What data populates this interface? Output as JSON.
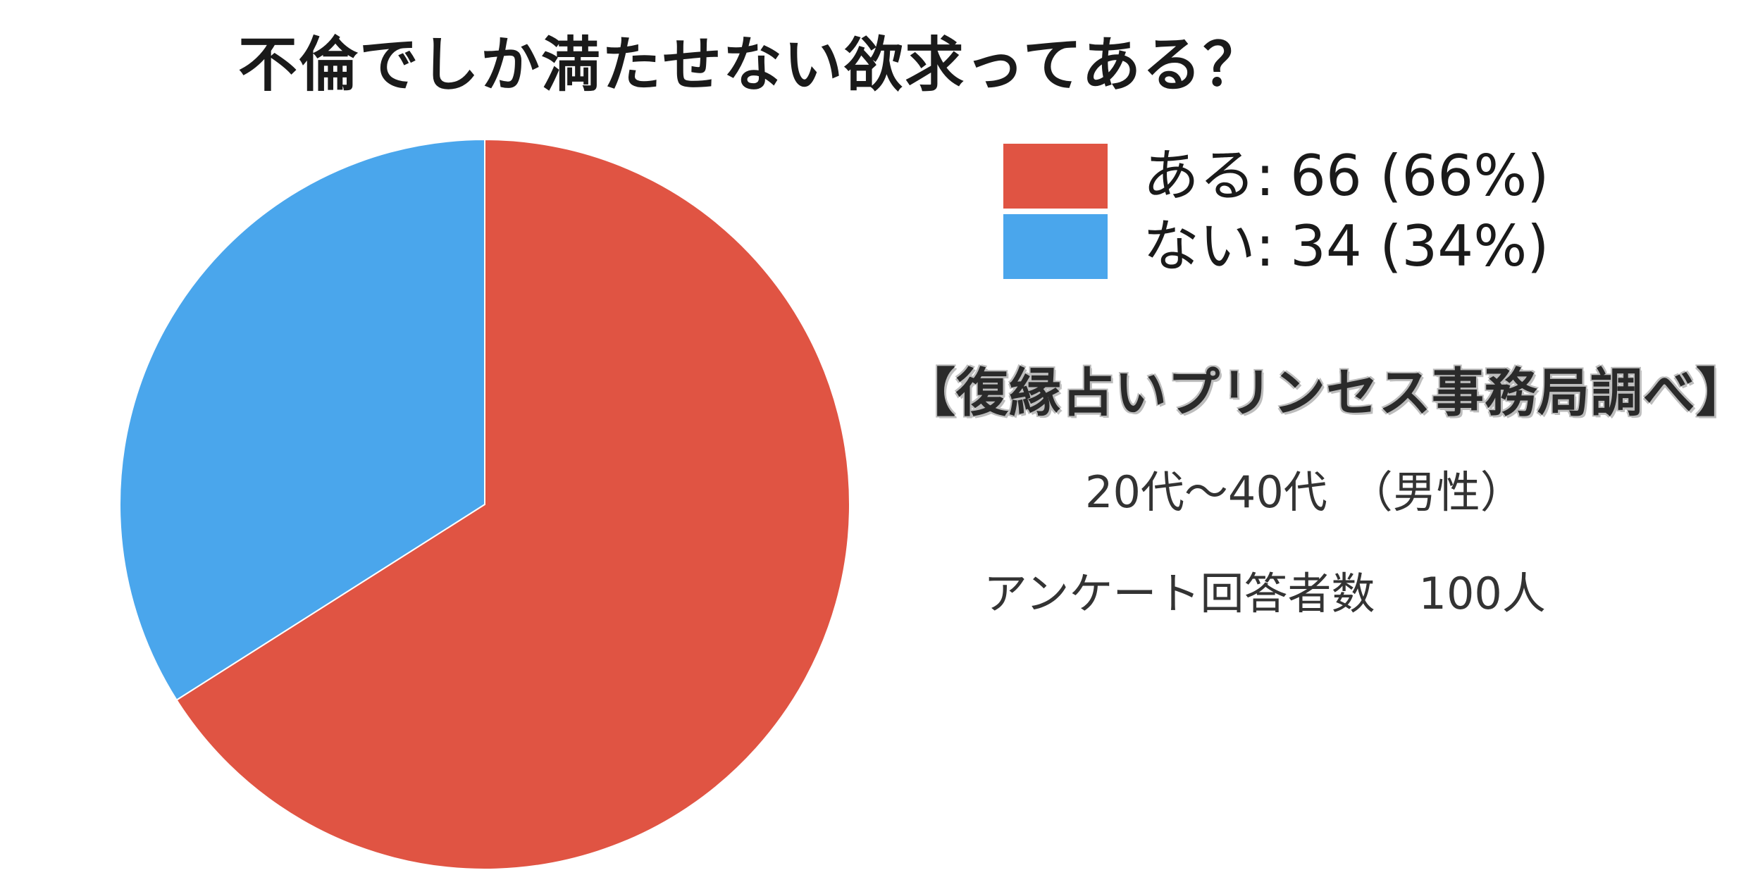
{
  "title": "不倫でしか満たせない欲求ってある？",
  "source": "【復縁占いプリンセス事務局調べ】",
  "respondents": {
    "age_range": "20代〜40代　（男性）",
    "count": "アンケート回答者数　100人"
  },
  "legend": [
    {
      "label": "ある",
      "sep": ":",
      "count": "66",
      "pct": "(66%)",
      "color": "#e05443"
    },
    {
      "label": "ない",
      "sep": ":",
      "count": "34",
      "pct": "(34%)",
      "color": "#4aa6ec"
    }
  ],
  "chart_data": {
    "type": "pie",
    "title": "不倫でしか満たせない欲求ってある？",
    "slices": [
      {
        "label": "ある",
        "value": 66,
        "percent": 66,
        "color": "#e05443"
      },
      {
        "label": "ない",
        "value": 34,
        "percent": 34,
        "color": "#4aa6ec"
      }
    ],
    "start_angle_deg": 0,
    "direction": "clockwise"
  }
}
